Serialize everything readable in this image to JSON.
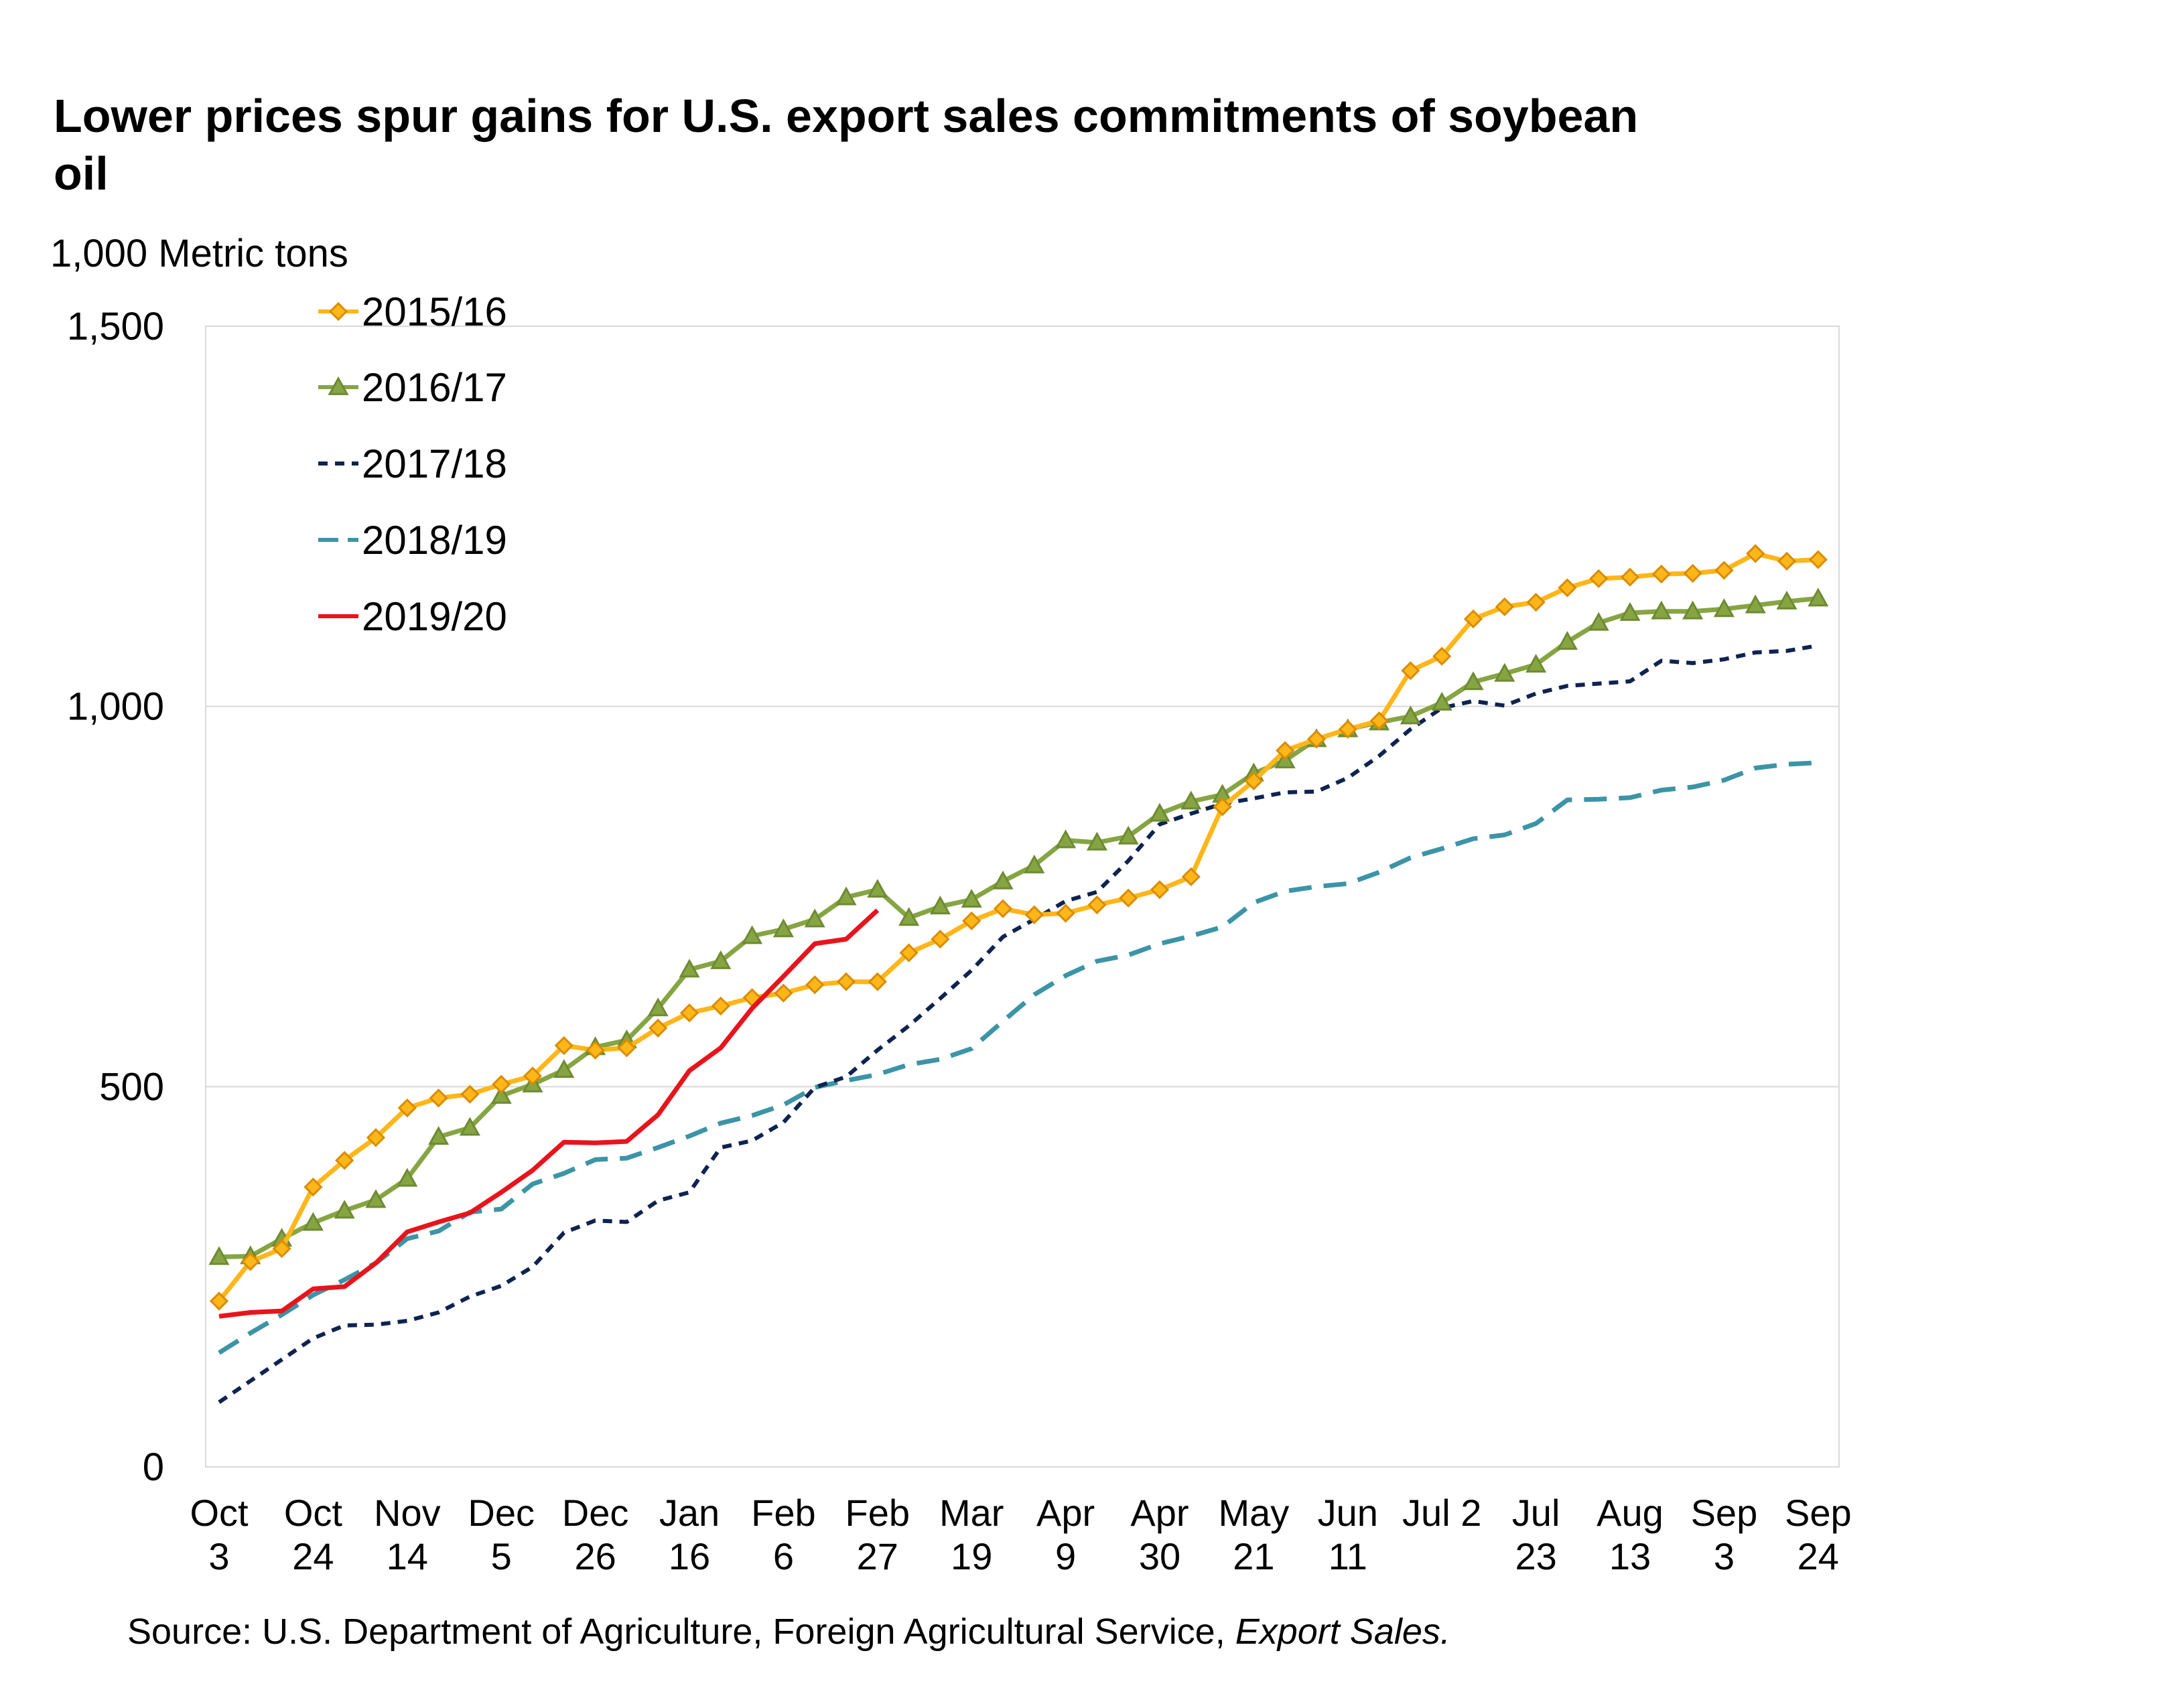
{
  "chart_data": {
    "type": "line",
    "title": "Lower prices spur gains for U.S. export sales commitments of soybean oil",
    "ylabel": "1,000 Metric tons",
    "xlabel": "",
    "ylim": [
      0,
      1500
    ],
    "yticks": [
      0,
      500,
      1000,
      1500
    ],
    "ytick_labels": [
      "0",
      "500",
      "1,000",
      "1,500"
    ],
    "grid": true,
    "legend_position": "top-left",
    "n_weeks": 52,
    "x_tick_labels": [
      {
        "week": 0,
        "line1": "Oct",
        "line2": "3"
      },
      {
        "week": 3,
        "line1": "Oct",
        "line2": "24"
      },
      {
        "week": 6,
        "line1": "Nov",
        "line2": "14"
      },
      {
        "week": 9,
        "line1": "Dec",
        "line2": "5"
      },
      {
        "week": 12,
        "line1": "Dec",
        "line2": "26"
      },
      {
        "week": 15,
        "line1": "Jan",
        "line2": "16"
      },
      {
        "week": 18,
        "line1": "Feb",
        "line2": "6"
      },
      {
        "week": 21,
        "line1": "Feb",
        "line2": "27"
      },
      {
        "week": 24,
        "line1": "Mar",
        "line2": "19"
      },
      {
        "week": 27,
        "line1": "Apr",
        "line2": "9"
      },
      {
        "week": 30,
        "line1": "Apr",
        "line2": "30"
      },
      {
        "week": 33,
        "line1": "May",
        "line2": "21"
      },
      {
        "week": 36,
        "line1": "Jun",
        "line2": "11"
      },
      {
        "week": 39,
        "line1": "Jul 2",
        "line2": ""
      },
      {
        "week": 42,
        "line1": "Jul",
        "line2": "23"
      },
      {
        "week": 45,
        "line1": "Aug",
        "line2": "13"
      },
      {
        "week": 48,
        "line1": "Sep",
        "line2": "3"
      },
      {
        "week": 51,
        "line1": "Sep",
        "line2": "24"
      }
    ],
    "series": [
      {
        "name": "2015/16",
        "color": "#FFB619",
        "marker": "diamond",
        "marker_fill": "#FFB619",
        "marker_stroke": "#D98C00",
        "dash": "solid",
        "values": [
          218,
          270,
          287,
          368,
          403,
          433,
          472,
          485,
          490,
          503,
          514,
          554,
          548,
          551,
          577,
          597,
          606,
          617,
          623,
          634,
          638,
          638,
          676,
          694,
          718,
          734,
          726,
          728,
          739,
          748,
          759,
          776,
          868,
          902,
          942,
          957,
          970,
          981,
          1047,
          1066,
          1115,
          1131,
          1137,
          1156,
          1168,
          1170,
          1174,
          1175,
          1179,
          1201,
          1191,
          1193
        ]
      },
      {
        "name": "2016/17",
        "color": "#86A542",
        "marker": "triangle",
        "marker_fill": "#86A542",
        "marker_stroke": "#6E8A33",
        "dash": "solid",
        "values": [
          276,
          277,
          300,
          321,
          337,
          351,
          379,
          434,
          446,
          488,
          503,
          522,
          552,
          561,
          603,
          654,
          665,
          698,
          707,
          720,
          749,
          759,
          722,
          737,
          746,
          770,
          791,
          824,
          821,
          829,
          859,
          875,
          884,
          912,
          929,
          957,
          970,
          979,
          987,
          1005,
          1032,
          1043,
          1055,
          1085,
          1110,
          1123,
          1125,
          1125,
          1128,
          1133,
          1138,
          1142
        ]
      },
      {
        "name": "2017/18",
        "color": "#0E2350",
        "marker": "none",
        "dash": "short",
        "values": [
          85,
          113,
          141,
          169,
          186,
          187,
          192,
          203,
          224,
          238,
          263,
          308,
          324,
          322,
          350,
          361,
          420,
          429,
          453,
          499,
          513,
          548,
          580,
          616,
          653,
          697,
          720,
          744,
          756,
          797,
          845,
          859,
          872,
          879,
          887,
          888,
          906,
          935,
          970,
          998,
          1007,
          1001,
          1017,
          1027,
          1030,
          1033,
          1060,
          1057,
          1062,
          1071,
          1073,
          1080
        ]
      },
      {
        "name": "2018/19",
        "color": "#3C94A6",
        "marker": "none",
        "dash": "long",
        "values": [
          150,
          176,
          200,
          226,
          246,
          268,
          300,
          310,
          335,
          339,
          372,
          386,
          404,
          406,
          420,
          435,
          452,
          462,
          476,
          499,
          508,
          516,
          529,
          536,
          550,
          586,
          621,
          646,
          665,
          673,
          688,
          698,
          710,
          742,
          757,
          763,
          767,
          782,
          801,
          813,
          826,
          831,
          846,
          877,
          878,
          880,
          890,
          894,
          903,
          919,
          924,
          926
        ]
      },
      {
        "name": "2019/20",
        "color": "#E8141C",
        "marker": "none",
        "dash": "solid",
        "values": [
          198,
          203,
          205,
          234,
          237,
          268,
          309,
          322,
          334,
          361,
          390,
          427,
          426,
          428,
          463,
          521,
          551,
          603,
          645,
          688,
          694,
          732
        ]
      }
    ],
    "source_prefix": "Source: U.S. Department of Agriculture, Foreign Agricultural Service, ",
    "source_italic": "Export Sales."
  }
}
